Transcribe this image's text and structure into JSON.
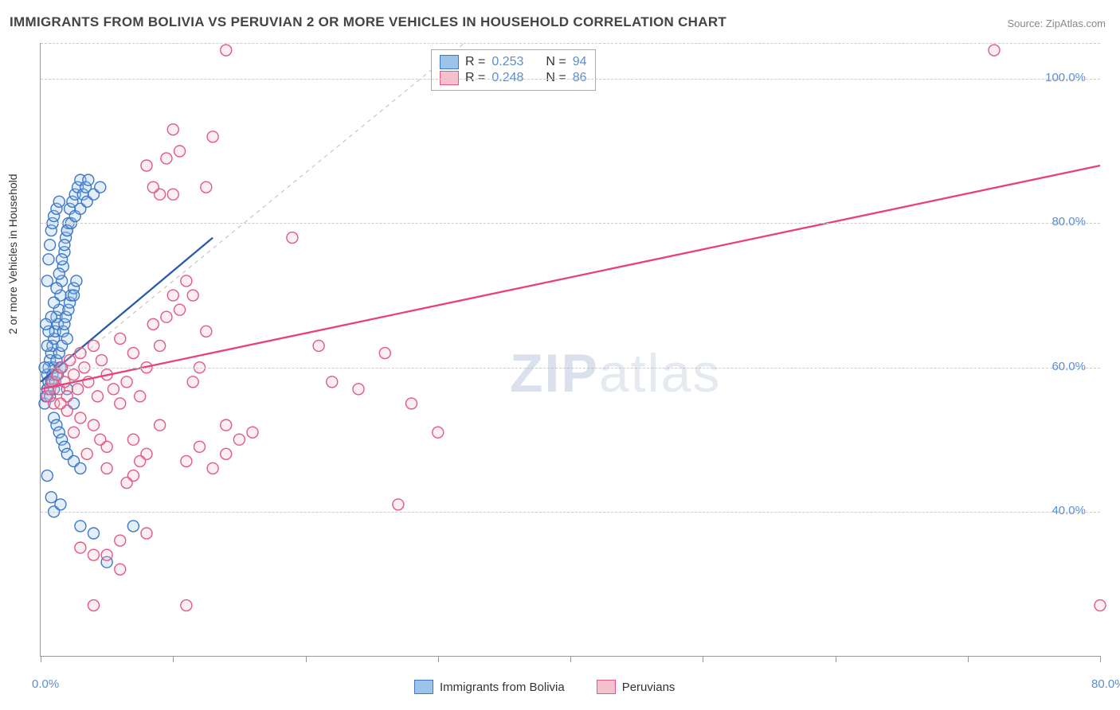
{
  "title": "IMMIGRANTS FROM BOLIVIA VS PERUVIAN 2 OR MORE VEHICLES IN HOUSEHOLD CORRELATION CHART",
  "source": "Source: ZipAtlas.com",
  "y_axis_label": "2 or more Vehicles in Household",
  "watermark_bold": "ZIP",
  "watermark_light": "atlas",
  "chart": {
    "type": "scatter",
    "xlim": [
      0,
      80
    ],
    "ylim": [
      20,
      105
    ],
    "x_ticks": [
      0,
      10,
      20,
      30,
      40,
      50,
      60,
      70,
      80
    ],
    "x_tick_labels": {
      "0": "0.0%",
      "80": "80.0%"
    },
    "y_ticks": [
      40,
      60,
      80,
      100
    ],
    "y_tick_labels": {
      "40": "40.0%",
      "60": "60.0%",
      "80": "80.0%",
      "100": "100.0%"
    },
    "grid_y": [
      40,
      60,
      80,
      100,
      105
    ],
    "background_color": "#ffffff",
    "grid_color": "#cccccc",
    "axis_color": "#999999",
    "tick_label_color": "#5b8dd6",
    "tick_label_fontsize": 15,
    "marker_radius": 7,
    "marker_stroke_width": 1.4,
    "marker_fill_opacity": 0.28,
    "trend_width": 2.3,
    "identity_line": {
      "x1": 0,
      "y1": 57,
      "x2": 32,
      "y2": 105,
      "color": "#bbbbbb",
      "dash": "5,5",
      "width": 1
    }
  },
  "series": [
    {
      "key": "bolivia",
      "label": "Immigrants from Bolivia",
      "color_fill": "#9cc3ea",
      "color_stroke": "#3d78c7",
      "trend_color": "#2a5aa8",
      "R": "0.253",
      "N": "94",
      "trend": {
        "x1": 0,
        "y1": 58,
        "x2": 13,
        "y2": 78
      },
      "points": [
        [
          0.3,
          55
        ],
        [
          0.4,
          56
        ],
        [
          0.5,
          57
        ],
        [
          0.5,
          59
        ],
        [
          0.6,
          58
        ],
        [
          0.6,
          60
        ],
        [
          0.7,
          56
        ],
        [
          0.7,
          61
        ],
        [
          0.8,
          58
        ],
        [
          0.8,
          62
        ],
        [
          0.9,
          59
        ],
        [
          0.9,
          63
        ],
        [
          1.0,
          57
        ],
        [
          1.0,
          60
        ],
        [
          1.0,
          64
        ],
        [
          1.1,
          58
        ],
        [
          1.1,
          65
        ],
        [
          1.2,
          67
        ],
        [
          1.2,
          61
        ],
        [
          1.3,
          59
        ],
        [
          1.3,
          66
        ],
        [
          1.4,
          62
        ],
        [
          1.4,
          68
        ],
        [
          1.5,
          60
        ],
        [
          1.5,
          70
        ],
        [
          1.6,
          63
        ],
        [
          1.6,
          72
        ],
        [
          1.7,
          65
        ],
        [
          1.7,
          74
        ],
        [
          1.8,
          66
        ],
        [
          1.8,
          76
        ],
        [
          1.9,
          67
        ],
        [
          1.9,
          78
        ],
        [
          2.0,
          64
        ],
        [
          2.0,
          79
        ],
        [
          2.1,
          68
        ],
        [
          2.1,
          80
        ],
        [
          2.2,
          69
        ],
        [
          2.2,
          82
        ],
        [
          2.3,
          70
        ],
        [
          2.4,
          83
        ],
        [
          2.5,
          71
        ],
        [
          2.6,
          84
        ],
        [
          2.7,
          72
        ],
        [
          2.8,
          85
        ],
        [
          3.0,
          86
        ],
        [
          3.2,
          84
        ],
        [
          3.4,
          85
        ],
        [
          3.6,
          86
        ],
        [
          1.0,
          53
        ],
        [
          1.2,
          52
        ],
        [
          1.4,
          51
        ],
        [
          1.6,
          50
        ],
        [
          1.8,
          49
        ],
        [
          2.0,
          48
        ],
        [
          2.5,
          47
        ],
        [
          3.0,
          46
        ],
        [
          0.5,
          63
        ],
        [
          0.6,
          65
        ],
        [
          0.8,
          67
        ],
        [
          1.0,
          69
        ],
        [
          1.2,
          71
        ],
        [
          1.4,
          73
        ],
        [
          1.6,
          75
        ],
        [
          1.8,
          77
        ],
        [
          2.0,
          79
        ],
        [
          2.3,
          80
        ],
        [
          2.6,
          81
        ],
        [
          3.0,
          82
        ],
        [
          3.5,
          83
        ],
        [
          4.0,
          84
        ],
        [
          4.5,
          85
        ],
        [
          0.3,
          60
        ],
        [
          0.4,
          66
        ],
        [
          0.5,
          72
        ],
        [
          0.6,
          75
        ],
        [
          0.7,
          77
        ],
        [
          0.8,
          79
        ],
        [
          0.9,
          80
        ],
        [
          1.0,
          81
        ],
        [
          1.2,
          82
        ],
        [
          1.4,
          83
        ],
        [
          1.6,
          60
        ],
        [
          2.0,
          57
        ],
        [
          2.5,
          55
        ],
        [
          3.0,
          38
        ],
        [
          4.0,
          37
        ],
        [
          7.0,
          38
        ],
        [
          5.0,
          33
        ],
        [
          0.5,
          45
        ],
        [
          0.8,
          42
        ],
        [
          1.0,
          40
        ],
        [
          1.5,
          41
        ],
        [
          2.5,
          70
        ]
      ]
    },
    {
      "key": "peruvian",
      "label": "Peruvians",
      "color_fill": "#f6c1cf",
      "color_stroke": "#e05a82",
      "trend_color": "#e8407b",
      "R": "0.248",
      "N": "86",
      "trend": {
        "x1": 0,
        "y1": 57,
        "x2": 80,
        "y2": 88
      },
      "points": [
        [
          0.5,
          56
        ],
        [
          0.7,
          57
        ],
        [
          0.9,
          58
        ],
        [
          1.0,
          55
        ],
        [
          1.2,
          59
        ],
        [
          1.4,
          57
        ],
        [
          1.6,
          60
        ],
        [
          1.8,
          58
        ],
        [
          2.0,
          56
        ],
        [
          2.2,
          61
        ],
        [
          2.5,
          59
        ],
        [
          2.8,
          57
        ],
        [
          3.0,
          62
        ],
        [
          3.3,
          60
        ],
        [
          3.6,
          58
        ],
        [
          4.0,
          63
        ],
        [
          4.3,
          56
        ],
        [
          4.6,
          61
        ],
        [
          5.0,
          59
        ],
        [
          5.5,
          57
        ],
        [
          6.0,
          64
        ],
        [
          6.5,
          58
        ],
        [
          7.0,
          62
        ],
        [
          7.5,
          56
        ],
        [
          8.0,
          60
        ],
        [
          8.5,
          66
        ],
        [
          9.0,
          63
        ],
        [
          9.5,
          67
        ],
        [
          10,
          70
        ],
        [
          10.5,
          68
        ],
        [
          11,
          72
        ],
        [
          11.5,
          58
        ],
        [
          12,
          60
        ],
        [
          12.5,
          85
        ],
        [
          13,
          92
        ],
        [
          14,
          104
        ],
        [
          10,
          93
        ],
        [
          10.5,
          90
        ],
        [
          8,
          88
        ],
        [
          9,
          84
        ],
        [
          19,
          78
        ],
        [
          21,
          63
        ],
        [
          22,
          58
        ],
        [
          24,
          57
        ],
        [
          26,
          62
        ],
        [
          28,
          55
        ],
        [
          30,
          51
        ],
        [
          27,
          41
        ],
        [
          5,
          34
        ],
        [
          6,
          32
        ],
        [
          11,
          27
        ],
        [
          4,
          27
        ],
        [
          3,
          35
        ],
        [
          4,
          34
        ],
        [
          6,
          36
        ],
        [
          8,
          37
        ],
        [
          5,
          49
        ],
        [
          7,
          50
        ],
        [
          9,
          52
        ],
        [
          11,
          47
        ],
        [
          12,
          49
        ],
        [
          13,
          46
        ],
        [
          14,
          48
        ],
        [
          14,
          52
        ],
        [
          15,
          50
        ],
        [
          16,
          51
        ],
        [
          7,
          45
        ],
        [
          8,
          48
        ],
        [
          4,
          52
        ],
        [
          5,
          46
        ],
        [
          6,
          55
        ],
        [
          2,
          54
        ],
        [
          3,
          53
        ],
        [
          1.5,
          55
        ],
        [
          2.5,
          51
        ],
        [
          3.5,
          48
        ],
        [
          4.5,
          50
        ],
        [
          6.5,
          44
        ],
        [
          7.5,
          47
        ],
        [
          72,
          104
        ],
        [
          80,
          27
        ],
        [
          8.5,
          85
        ],
        [
          9.5,
          89
        ],
        [
          11.5,
          70
        ],
        [
          12.5,
          65
        ],
        [
          10,
          84
        ]
      ]
    }
  ],
  "legend": {
    "stats_labels": {
      "R": "R =",
      "N": "N ="
    }
  }
}
